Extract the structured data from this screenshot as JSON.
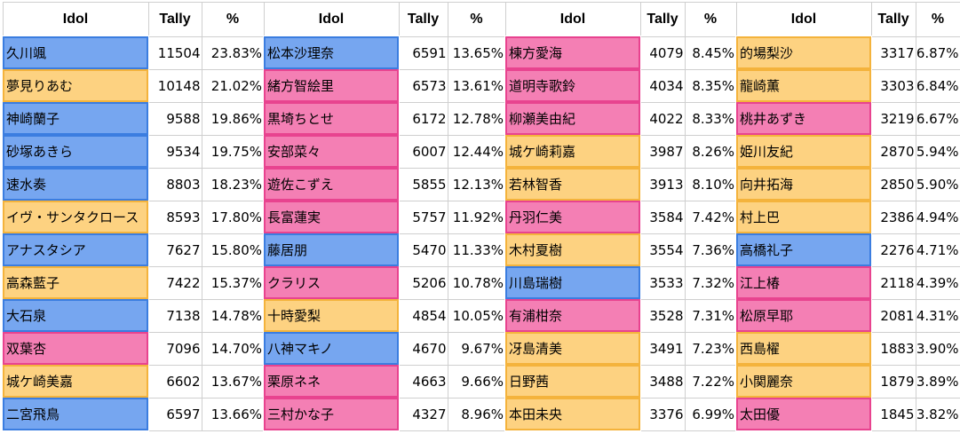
{
  "headers": {
    "idol": "Idol",
    "tally": "Tally",
    "pct": "%"
  },
  "colors": {
    "blue": "#76a6f0",
    "yellow": "#fdd281",
    "pink": "#f47fb4"
  },
  "columns": [
    [
      {
        "name": "久川颯",
        "tally": "11504",
        "pct": "23.83%",
        "color": "blue"
      },
      {
        "name": "夢見りあむ",
        "tally": "10148",
        "pct": "21.02%",
        "color": "yellow"
      },
      {
        "name": "神崎蘭子",
        "tally": "9588",
        "pct": "19.86%",
        "color": "blue"
      },
      {
        "name": "砂塚あきら",
        "tally": "9534",
        "pct": "19.75%",
        "color": "blue"
      },
      {
        "name": "速水奏",
        "tally": "8803",
        "pct": "18.23%",
        "color": "blue"
      },
      {
        "name": "イヴ・サンタクロース",
        "tally": "8593",
        "pct": "17.80%",
        "color": "yellow"
      },
      {
        "name": "アナスタシア",
        "tally": "7627",
        "pct": "15.80%",
        "color": "blue"
      },
      {
        "name": "高森藍子",
        "tally": "7422",
        "pct": "15.37%",
        "color": "yellow"
      },
      {
        "name": "大石泉",
        "tally": "7138",
        "pct": "14.78%",
        "color": "blue"
      },
      {
        "name": "双葉杏",
        "tally": "7096",
        "pct": "14.70%",
        "color": "pink"
      },
      {
        "name": "城ケ崎美嘉",
        "tally": "6602",
        "pct": "13.67%",
        "color": "yellow"
      },
      {
        "name": "二宮飛鳥",
        "tally": "6597",
        "pct": "13.66%",
        "color": "blue"
      }
    ],
    [
      {
        "name": "松本沙理奈",
        "tally": "6591",
        "pct": "13.65%",
        "color": "blue"
      },
      {
        "name": "緒方智絵里",
        "tally": "6573",
        "pct": "13.61%",
        "color": "pink"
      },
      {
        "name": "黒埼ちとせ",
        "tally": "6172",
        "pct": "12.78%",
        "color": "pink"
      },
      {
        "name": "安部菜々",
        "tally": "6007",
        "pct": "12.44%",
        "color": "pink"
      },
      {
        "name": "遊佐こずえ",
        "tally": "5855",
        "pct": "12.13%",
        "color": "pink"
      },
      {
        "name": "長富蓮実",
        "tally": "5757",
        "pct": "11.92%",
        "color": "pink"
      },
      {
        "name": "藤居朋",
        "tally": "5470",
        "pct": "11.33%",
        "color": "blue"
      },
      {
        "name": "クラリス",
        "tally": "5206",
        "pct": "10.78%",
        "color": "pink"
      },
      {
        "name": "十時愛梨",
        "tally": "4854",
        "pct": "10.05%",
        "color": "yellow"
      },
      {
        "name": "八神マキノ",
        "tally": "4670",
        "pct": "9.67%",
        "color": "blue"
      },
      {
        "name": "栗原ネネ",
        "tally": "4663",
        "pct": "9.66%",
        "color": "pink"
      },
      {
        "name": "三村かな子",
        "tally": "4327",
        "pct": "8.96%",
        "color": "pink"
      }
    ],
    [
      {
        "name": "棟方愛海",
        "tally": "4079",
        "pct": "8.45%",
        "color": "pink"
      },
      {
        "name": "道明寺歌鈴",
        "tally": "4034",
        "pct": "8.35%",
        "color": "pink"
      },
      {
        "name": "柳瀬美由紀",
        "tally": "4022",
        "pct": "8.33%",
        "color": "pink"
      },
      {
        "name": "城ケ崎莉嘉",
        "tally": "3987",
        "pct": "8.26%",
        "color": "yellow"
      },
      {
        "name": "若林智香",
        "tally": "3913",
        "pct": "8.10%",
        "color": "yellow"
      },
      {
        "name": "丹羽仁美",
        "tally": "3584",
        "pct": "7.42%",
        "color": "pink"
      },
      {
        "name": "木村夏樹",
        "tally": "3554",
        "pct": "7.36%",
        "color": "yellow"
      },
      {
        "name": "川島瑞樹",
        "tally": "3533",
        "pct": "7.32%",
        "color": "blue"
      },
      {
        "name": "有浦柑奈",
        "tally": "3528",
        "pct": "7.31%",
        "color": "pink"
      },
      {
        "name": "冴島清美",
        "tally": "3491",
        "pct": "7.23%",
        "color": "yellow"
      },
      {
        "name": "日野茜",
        "tally": "3488",
        "pct": "7.22%",
        "color": "yellow"
      },
      {
        "name": "本田未央",
        "tally": "3376",
        "pct": "6.99%",
        "color": "yellow"
      }
    ],
    [
      {
        "name": "的場梨沙",
        "tally": "3317",
        "pct": "6.87%",
        "color": "yellow"
      },
      {
        "name": "龍崎薫",
        "tally": "3303",
        "pct": "6.84%",
        "color": "yellow"
      },
      {
        "name": "桃井あずき",
        "tally": "3219",
        "pct": "6.67%",
        "color": "pink"
      },
      {
        "name": "姫川友紀",
        "tally": "2870",
        "pct": "5.94%",
        "color": "yellow"
      },
      {
        "name": "向井拓海",
        "tally": "2850",
        "pct": "5.90%",
        "color": "yellow"
      },
      {
        "name": "村上巴",
        "tally": "2386",
        "pct": "4.94%",
        "color": "yellow"
      },
      {
        "name": "高橋礼子",
        "tally": "2276",
        "pct": "4.71%",
        "color": "blue"
      },
      {
        "name": "江上椿",
        "tally": "2118",
        "pct": "4.39%",
        "color": "pink"
      },
      {
        "name": "松原早耶",
        "tally": "2081",
        "pct": "4.31%",
        "color": "pink"
      },
      {
        "name": "西島櫂",
        "tally": "1883",
        "pct": "3.90%",
        "color": "yellow"
      },
      {
        "name": "小関麗奈",
        "tally": "1879",
        "pct": "3.89%",
        "color": "yellow"
      },
      {
        "name": "太田優",
        "tally": "1845",
        "pct": "3.82%",
        "color": "pink"
      }
    ]
  ]
}
